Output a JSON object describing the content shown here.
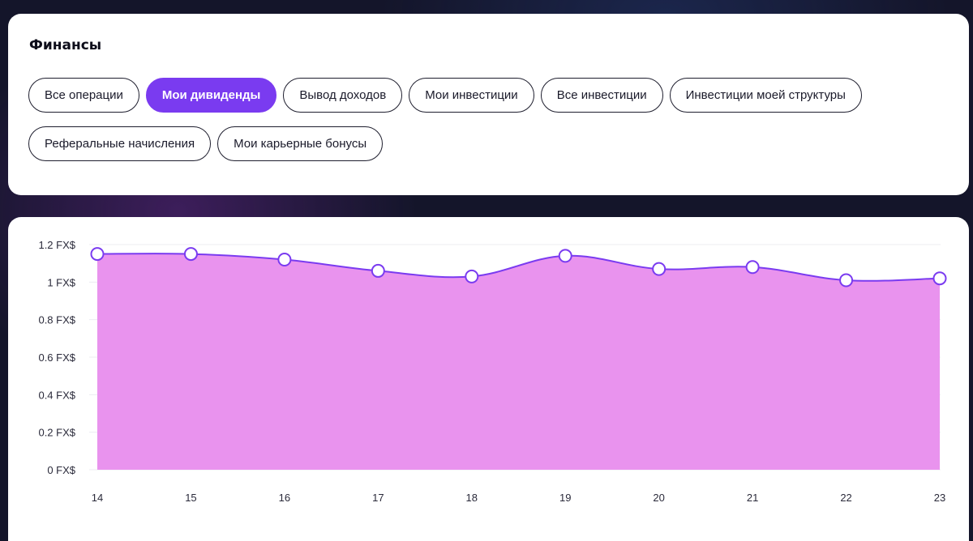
{
  "finance": {
    "title": "Финансы",
    "filters": [
      {
        "label": "Все операции",
        "active": false
      },
      {
        "label": "Мои дивиденды",
        "active": true
      },
      {
        "label": "Вывод доходов",
        "active": false
      },
      {
        "label": "Мои инвестиции",
        "active": false
      },
      {
        "label": "Все инвестиции",
        "active": false
      },
      {
        "label": "Инвестиции моей структуры",
        "active": false
      },
      {
        "label": "Реферальные начисления",
        "active": false
      },
      {
        "label": "Мои карьерные бонусы",
        "active": false
      }
    ]
  },
  "colors": {
    "accent": "#7a3bf0",
    "area_fill": "#e993ee",
    "line": "#7a3bf0"
  },
  "chart_data": {
    "type": "area",
    "x": [
      "14",
      "15",
      "16",
      "17",
      "18",
      "19",
      "20",
      "21",
      "22",
      "23"
    ],
    "values": [
      1.15,
      1.15,
      1.12,
      1.06,
      1.03,
      1.14,
      1.07,
      1.08,
      1.01,
      1.02
    ],
    "ylim": [
      0,
      1.2
    ],
    "y_ticks": [
      "1.2 FX$",
      "1 FX$",
      "0.8 FX$",
      "0.6 FX$",
      "0.4 FX$",
      "0.2 FX$",
      "0 FX$"
    ],
    "y_tick_values": [
      1.2,
      1.0,
      0.8,
      0.6,
      0.4,
      0.2,
      0
    ],
    "grid": true,
    "legend": "none"
  }
}
